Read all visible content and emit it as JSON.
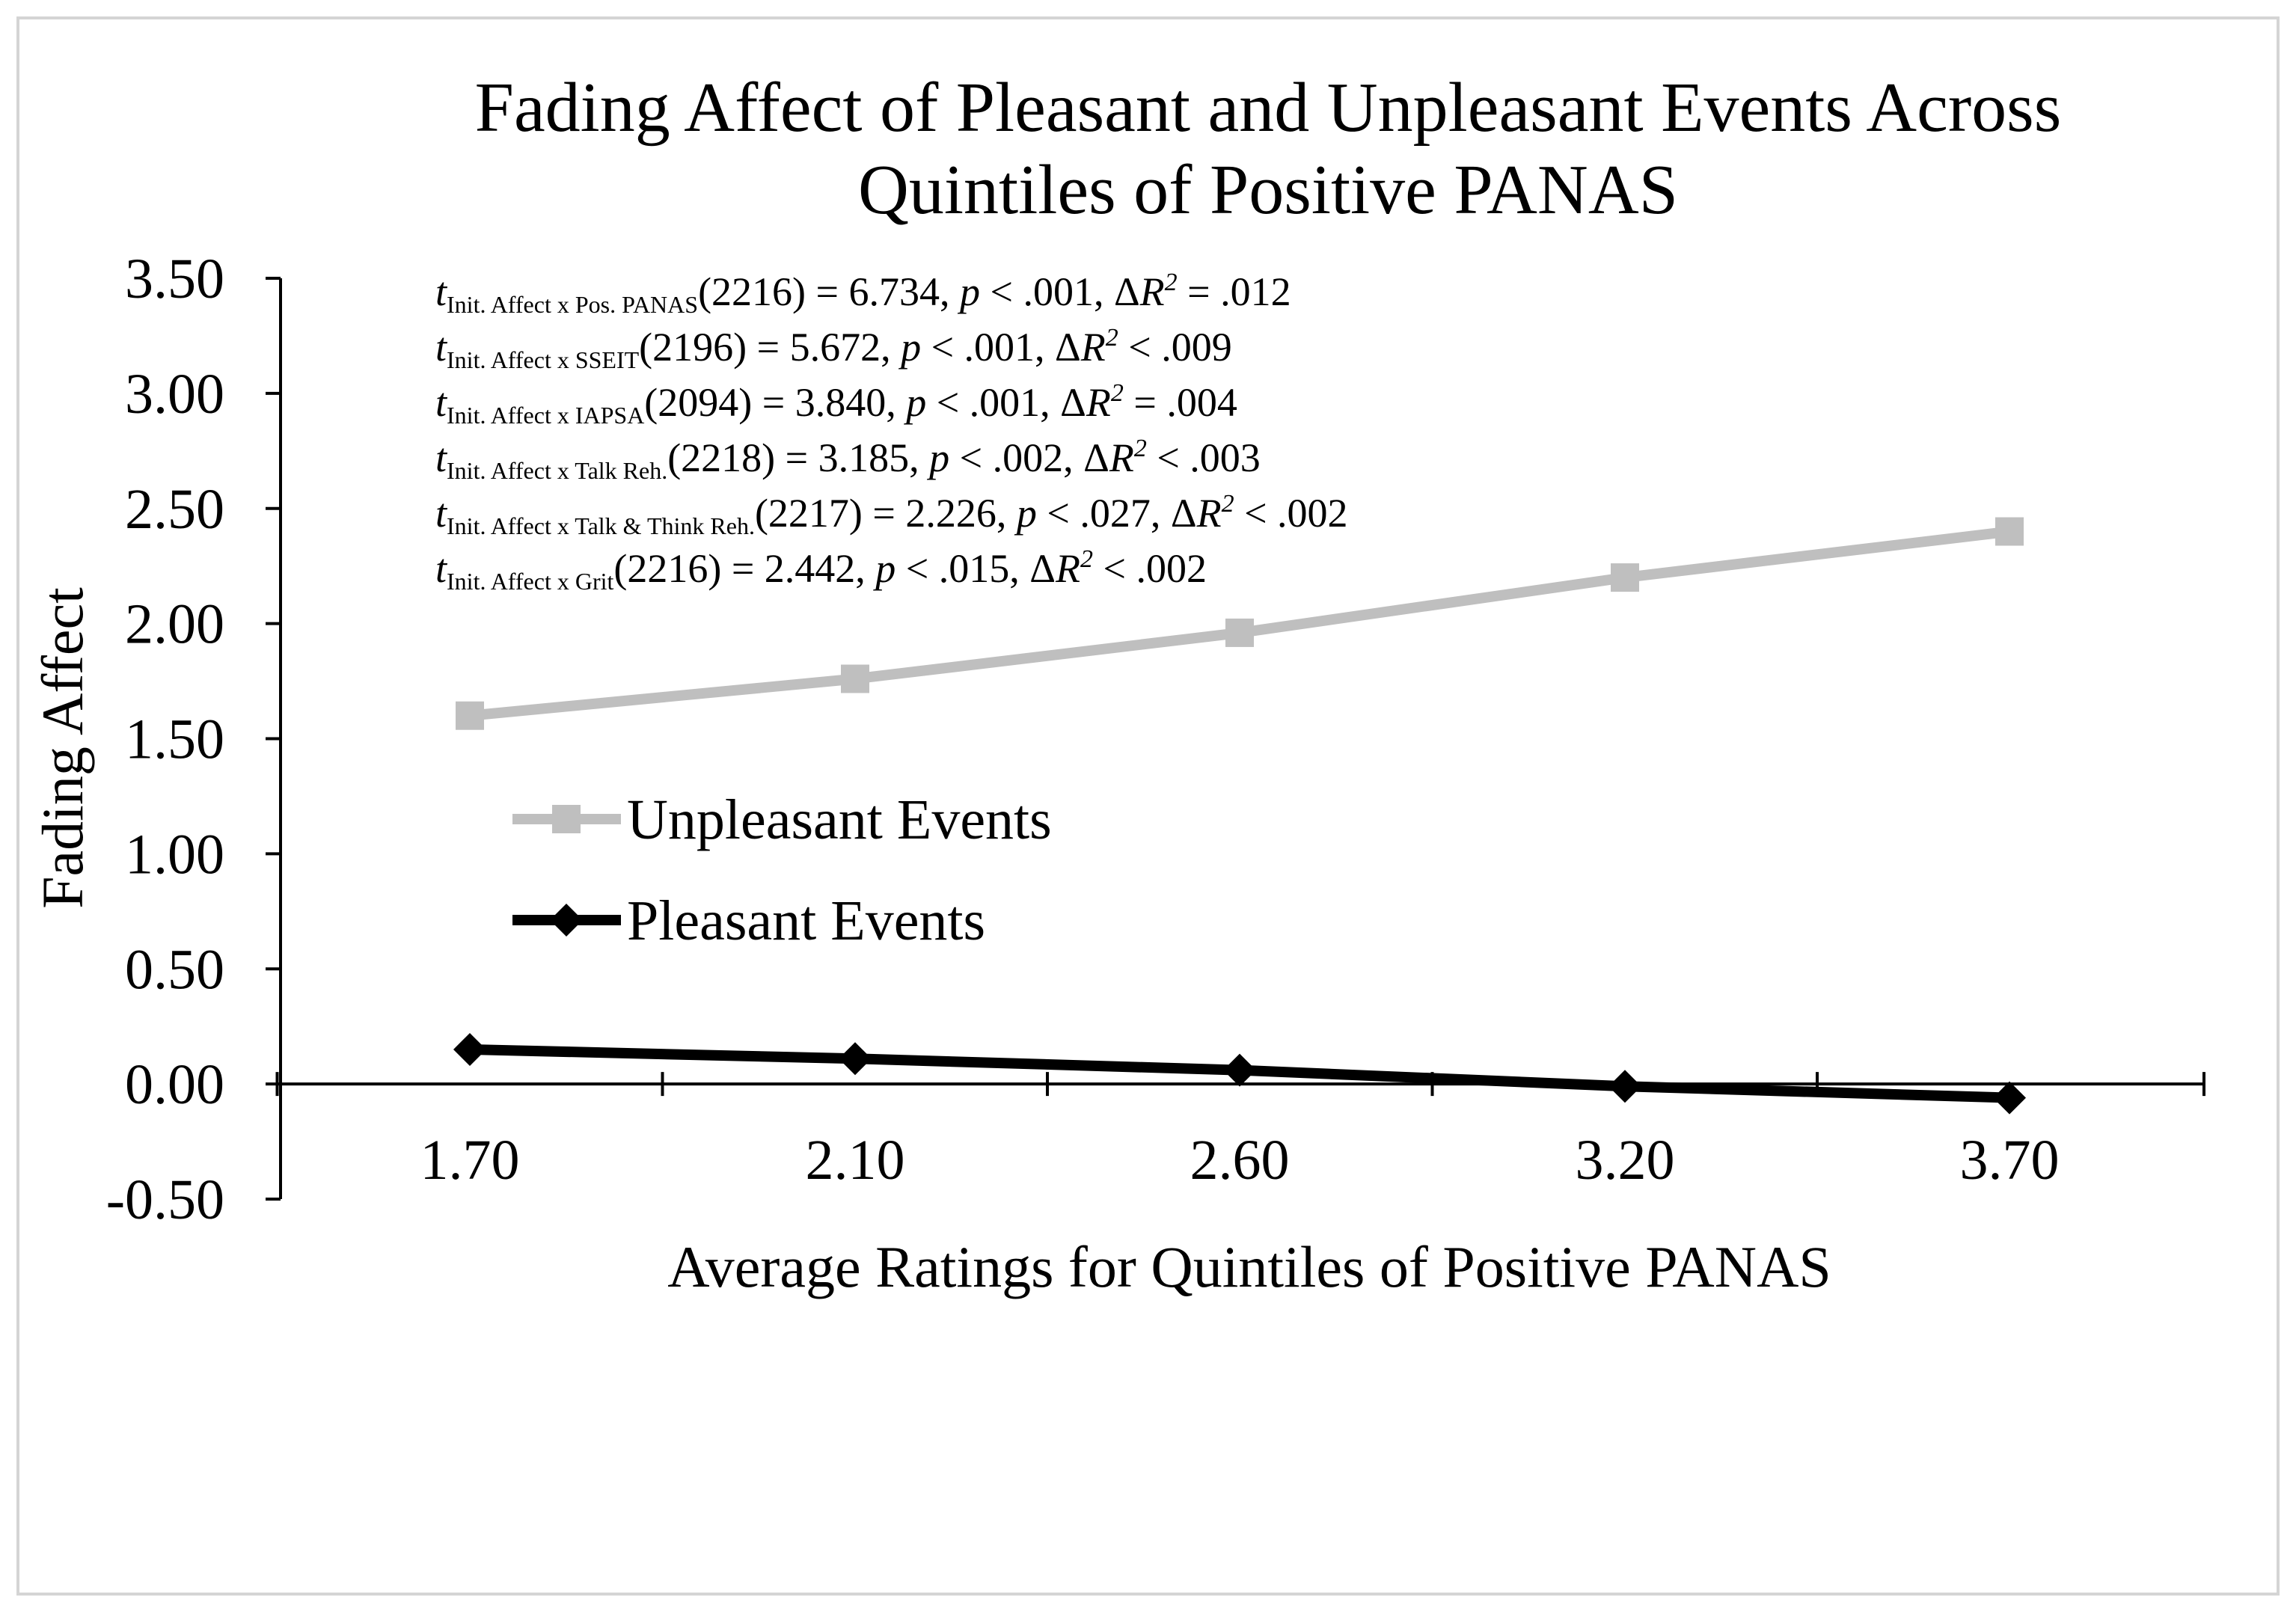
{
  "chart_data": {
    "type": "line",
    "title_lines": [
      "Fading Affect of Pleasant and Unpleasant Events Across",
      "Quintiles of Positive PANAS"
    ],
    "xlabel": "Average Ratings for Quintiles of Positive PANAS",
    "ylabel": "Fading Affect",
    "categories": [
      "1.70",
      "2.10",
      "2.60",
      "3.20",
      "3.70"
    ],
    "ylim": [
      -0.5,
      3.5
    ],
    "yticks": [
      "3.50",
      "3.00",
      "2.50",
      "2.00",
      "1.50",
      "1.00",
      "0.50",
      "0.00",
      "-0.50"
    ],
    "ytick_values": [
      3.5,
      3.0,
      2.5,
      2.0,
      1.5,
      1.0,
      0.5,
      0.0,
      -0.5
    ],
    "series": [
      {
        "name": "Unpleasant Events",
        "values": [
          1.6,
          1.76,
          1.96,
          2.2,
          2.4
        ],
        "color": "#bfbfbf",
        "marker": "square"
      },
      {
        "name": "Pleasant Events",
        "values": [
          0.15,
          0.11,
          0.06,
          -0.01,
          -0.06
        ],
        "color": "#000000",
        "marker": "diamond"
      }
    ],
    "annotations": [
      {
        "sub": "Init. Affect x Pos. PANAS",
        "rest": "(2216) = 6.734, ",
        "p": "< .001, ",
        "r2": "= .012"
      },
      {
        "sub": "Init. Affect x SSEIT",
        "rest": "(2196) = 5.672, ",
        "p": "< .001, ",
        "r2": "< .009"
      },
      {
        "sub": "Init. Affect x IAPSA",
        "rest": "(2094) = 3.840, ",
        "p": "< .001, ",
        "r2": "= .004"
      },
      {
        "sub": "Init. Affect x Talk Reh.",
        "rest": "(2218) = 3.185, ",
        "p": "< .002, ",
        "r2": "< .003"
      },
      {
        "sub": "Init. Affect x Talk & Think Reh.",
        "rest": "(2217) = 2.226, ",
        "p": "< .027, ",
        "r2": "< .002"
      },
      {
        "sub": "Init. Affect x Grit",
        "rest": "(2216)  = 2.442, ",
        "p": "< .015, ",
        "r2": "< .002"
      }
    ]
  }
}
